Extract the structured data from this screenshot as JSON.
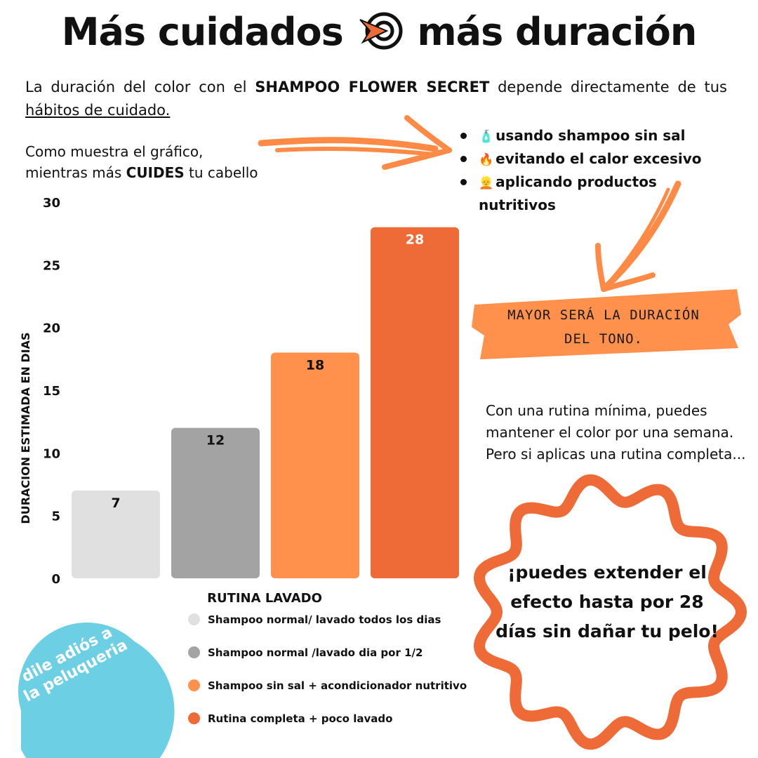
{
  "header": {
    "title_part1": "Más cuidados",
    "title_part2": "más duración",
    "title_icon": "target-arrow-icon"
  },
  "intro": {
    "text1": "La duración del color con el",
    "bold1": "SHAMPOO FLOWER SECRET",
    "text2": "depende directamente de tus",
    "underlined": "hábitos de cuidado."
  },
  "como": {
    "line1": "Como muestra el gráfico,",
    "line2_start": "mientras más",
    "line2_bold": "CUIDES",
    "line2_end": "tu cabello"
  },
  "bullets": [
    {
      "emoji": "🧴",
      "text": "usando shampoo sin sal"
    },
    {
      "emoji": "🔥",
      "text": "evitando el calor excesivo"
    },
    {
      "emoji": "👱",
      "text": "aplicando productos nutritivos"
    }
  ],
  "banner": {
    "line1": "MAYOR SERÁ LA DURACIÓN",
    "line2": "DEL TONO."
  },
  "minimal_text": "Con una rutina mínima, puedes mantener el color por una semana. Pero si aplicas una rutina completa...",
  "badge": {
    "text": "¡puedes extender el efecto hasta por 28 días sin dañar tu pelo!"
  },
  "circle": {
    "line1": "dile adiós a",
    "line2": "la peluqueria"
  },
  "colors": {
    "accent": "#EE6A36",
    "light_orange": "#FF914D",
    "gray": "#A3A3A3",
    "light_gray": "#E0E0E0",
    "blue": "#6CCFE3"
  },
  "chart_data": {
    "type": "bar",
    "title": "",
    "xlabel": "RUTINA LAVADO",
    "ylabel": "DURACION ESTIMADA EN DIAS",
    "ylim": [
      0,
      30
    ],
    "yticks": [
      0,
      5,
      10,
      15,
      20,
      25,
      30
    ],
    "grid": false,
    "legend_position": "bottom",
    "categories": [
      "Shampoo normal/ lavado todos los dias",
      "Shampoo normal /lavado dia por 1/2",
      "Shampoo sin sal + acondicionador nutritivo",
      "Rutina completa + poco lavado"
    ],
    "values": [
      7,
      12,
      18,
      28
    ],
    "colors": [
      "#E0E0E0",
      "#A3A3A3",
      "#FF914D",
      "#EE6A36"
    ]
  }
}
